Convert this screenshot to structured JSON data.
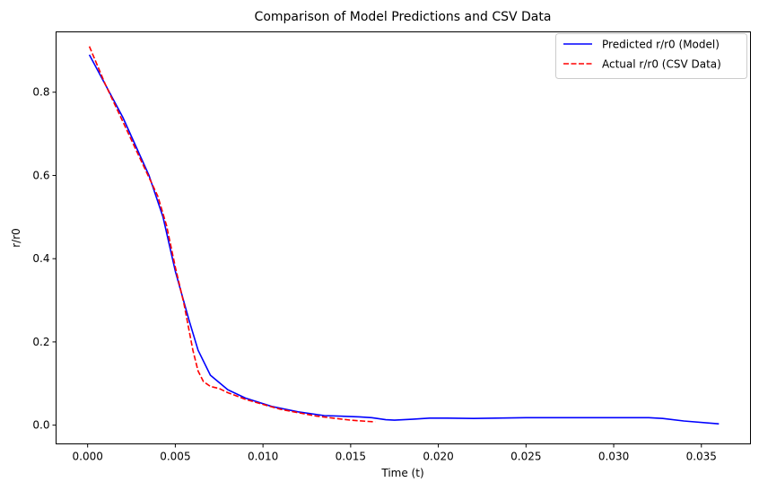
{
  "chart_data": {
    "type": "line",
    "title": "Comparison of Model Predictions and CSV Data",
    "xlabel": "Time (t)",
    "ylabel": "r/r0",
    "xlim": [
      -0.0018,
      0.0378
    ],
    "ylim": [
      -0.045,
      0.945
    ],
    "xticks": [
      0.0,
      0.005,
      0.01,
      0.015,
      0.02,
      0.025,
      0.03,
      0.035
    ],
    "xtick_labels": [
      "0.000",
      "0.005",
      "0.010",
      "0.015",
      "0.020",
      "0.025",
      "0.030",
      "0.035"
    ],
    "yticks": [
      0.0,
      0.2,
      0.4,
      0.6,
      0.8
    ],
    "ytick_labels": [
      "0.0",
      "0.2",
      "0.4",
      "0.6",
      "0.8"
    ],
    "grid": false,
    "legend_position": "top-right",
    "series": [
      {
        "name": "Predicted r/r0 (Model)",
        "color": "#0000ff",
        "dash": "solid",
        "x": [
          0.0001,
          0.002,
          0.0035,
          0.0043,
          0.005,
          0.0058,
          0.0063,
          0.007,
          0.008,
          0.009,
          0.0105,
          0.012,
          0.0135,
          0.0155,
          0.0162,
          0.017,
          0.0175,
          0.0185,
          0.0195,
          0.0205,
          0.022,
          0.025,
          0.028,
          0.031,
          0.032,
          0.0328,
          0.034,
          0.036
        ],
        "y": [
          0.89,
          0.74,
          0.6,
          0.5,
          0.37,
          0.25,
          0.18,
          0.12,
          0.085,
          0.065,
          0.045,
          0.032,
          0.023,
          0.02,
          0.018,
          0.013,
          0.012,
          0.014,
          0.017,
          0.017,
          0.016,
          0.018,
          0.018,
          0.018,
          0.018,
          0.016,
          0.01,
          0.003
        ]
      },
      {
        "name": "Actual r/r0 (CSV Data)",
        "color": "#ff0000",
        "dash": "dashed",
        "x": [
          0.0001,
          0.001,
          0.002,
          0.003,
          0.004,
          0.0045,
          0.005,
          0.0055,
          0.006,
          0.0063,
          0.0066,
          0.007,
          0.0075,
          0.008,
          0.009,
          0.01,
          0.011,
          0.012,
          0.013,
          0.014,
          0.015,
          0.016,
          0.0164
        ],
        "y": [
          0.91,
          0.82,
          0.73,
          0.64,
          0.55,
          0.48,
          0.38,
          0.29,
          0.18,
          0.13,
          0.105,
          0.093,
          0.088,
          0.078,
          0.062,
          0.05,
          0.038,
          0.03,
          0.022,
          0.017,
          0.012,
          0.009,
          0.008
        ]
      }
    ]
  }
}
